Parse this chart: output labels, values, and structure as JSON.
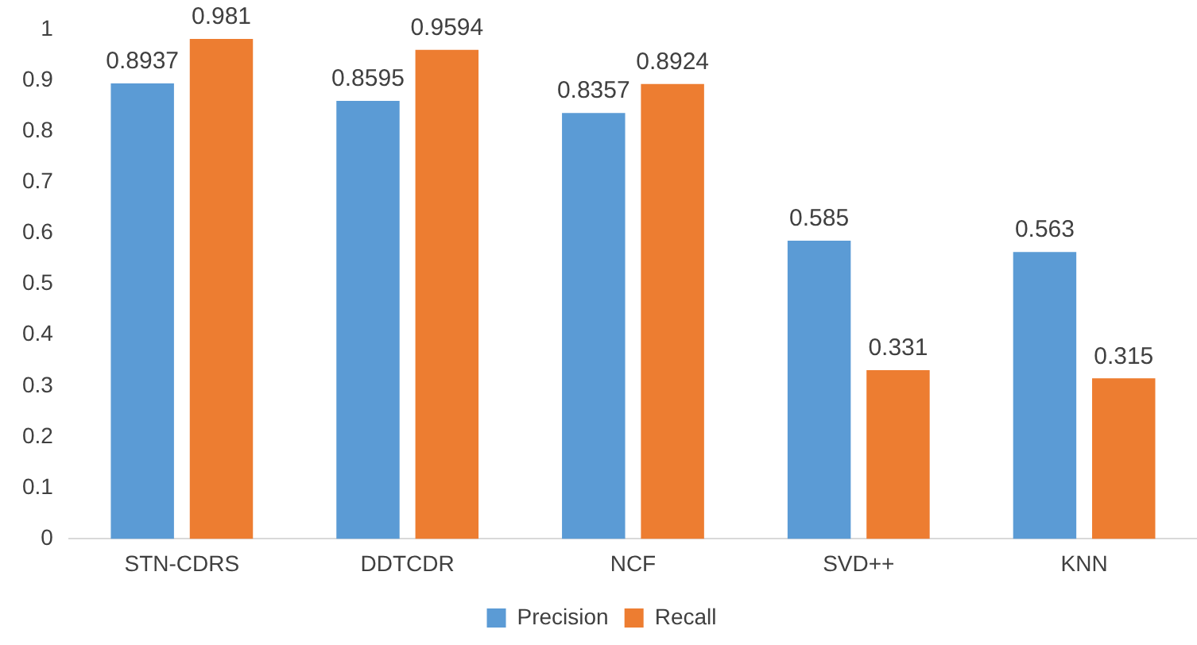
{
  "chart_data": {
    "type": "bar",
    "categories": [
      "STN-CDRS",
      "DDTCDR",
      "NCF",
      "SVD++",
      "KNN"
    ],
    "series": [
      {
        "name": "Precision",
        "color": "#5b9bd5",
        "values": [
          0.8937,
          0.8595,
          0.8357,
          0.585,
          0.563
        ]
      },
      {
        "name": "Recall",
        "color": "#ed7d31",
        "values": [
          0.981,
          0.9594,
          0.8924,
          0.331,
          0.315
        ]
      }
    ],
    "ylim": [
      0,
      1
    ],
    "yticks": [
      0,
      0.1,
      0.2,
      0.3,
      0.4,
      0.5,
      0.6,
      0.7,
      0.8,
      0.9,
      1
    ],
    "grid": false,
    "legend": "bottom",
    "data_labels": true
  }
}
